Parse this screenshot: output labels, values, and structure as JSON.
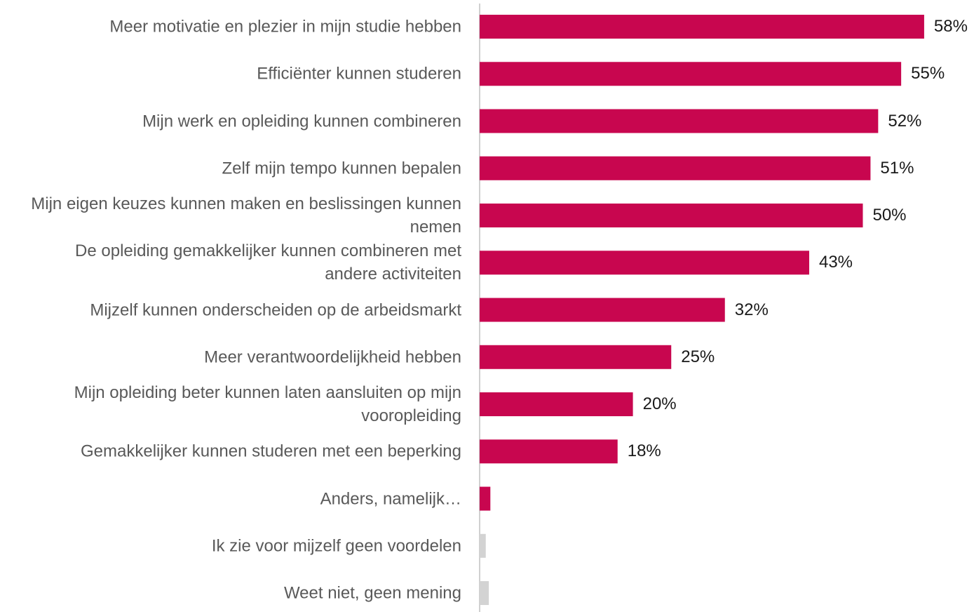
{
  "chart_data": {
    "type": "hbar",
    "categories": [
      "Meer motivatie en plezier in mijn studie hebben",
      "Efficiënter kunnen studeren",
      "Mijn werk en opleiding kunnen combineren",
      "Zelf mijn tempo kunnen bepalen",
      "Mijn eigen keuzes kunnen maken en beslissingen kunnen nemen",
      "De opleiding gemakkelijker kunnen combineren met andere activiteiten",
      "Mijzelf kunnen onderscheiden op de arbeidsmarkt",
      "Meer verantwoordelijkheid hebben",
      "Mijn opleiding beter kunnen laten aansluiten op mijn vooropleiding",
      "Gemakkelijker kunnen studeren met een beperking",
      "Anders, namelijk…",
      "Ik zie voor mijzelf geen voordelen",
      "Weet niet, geen mening"
    ],
    "values": [
      58,
      55,
      52,
      51,
      50,
      43,
      32,
      25,
      20,
      18,
      1.4,
      0.8,
      1.2
    ],
    "value_labels": [
      "58%",
      "55%",
      "52%",
      "51%",
      "50%",
      "43%",
      "32%",
      "25%",
      "20%",
      "18%",
      null,
      null,
      null
    ],
    "colors": [
      "#c8064f",
      "#c8064f",
      "#c8064f",
      "#c8064f",
      "#c8064f",
      "#c8064f",
      "#c8064f",
      "#c8064f",
      "#c8064f",
      "#c8064f",
      "#c8064f",
      "#d3d3d3",
      "#d3d3d3"
    ],
    "xlim": [
      0,
      64
    ]
  }
}
